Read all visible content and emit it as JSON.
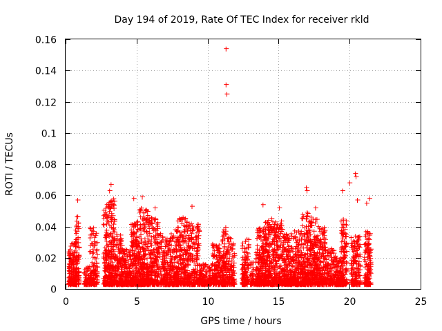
{
  "chart_data": {
    "type": "scatter",
    "title": "Day 194 of 2019, Rate Of TEC Index for receiver rkld",
    "xlabel": "GPS time / hours",
    "ylabel": "ROTI / TECUs",
    "xlim": [
      0,
      25
    ],
    "ylim": [
      0,
      0.16
    ],
    "grid": true,
    "marker": "plus",
    "series_color": "#ff0000",
    "x_ticks": [
      {
        "value": 0,
        "label": "0"
      },
      {
        "value": 5,
        "label": "5"
      },
      {
        "value": 10,
        "label": "10"
      },
      {
        "value": 15,
        "label": "15"
      },
      {
        "value": 20,
        "label": "20"
      },
      {
        "value": 25,
        "label": "25"
      }
    ],
    "y_ticks": [
      {
        "value": 0,
        "label": "0"
      },
      {
        "value": 0.02,
        "label": "0.02"
      },
      {
        "value": 0.04,
        "label": "0.04"
      },
      {
        "value": 0.06,
        "label": "0.06"
      },
      {
        "value": 0.08,
        "label": "0.08"
      },
      {
        "value": 0.1,
        "label": "0.1"
      },
      {
        "value": 0.12,
        "label": "0.12"
      },
      {
        "value": 0.14,
        "label": "0.14"
      },
      {
        "value": 0.16,
        "label": "0.16"
      }
    ],
    "peak_points": [
      {
        "x": 11.3,
        "y": 0.154
      },
      {
        "x": 11.3,
        "y": 0.131
      },
      {
        "x": 11.35,
        "y": 0.125
      },
      {
        "x": 20.4,
        "y": 0.074
      },
      {
        "x": 20.45,
        "y": 0.072
      },
      {
        "x": 20.0,
        "y": 0.068
      },
      {
        "x": 3.2,
        "y": 0.067
      },
      {
        "x": 3.1,
        "y": 0.063
      },
      {
        "x": 16.95,
        "y": 0.065
      },
      {
        "x": 17.0,
        "y": 0.063
      },
      {
        "x": 19.5,
        "y": 0.063
      },
      {
        "x": 5.4,
        "y": 0.059
      },
      {
        "x": 4.8,
        "y": 0.058
      },
      {
        "x": 0.85,
        "y": 0.057
      },
      {
        "x": 21.4,
        "y": 0.058
      },
      {
        "x": 20.55,
        "y": 0.057
      },
      {
        "x": 2.9,
        "y": 0.054
      },
      {
        "x": 13.9,
        "y": 0.054
      },
      {
        "x": 8.9,
        "y": 0.053
      },
      {
        "x": 15.05,
        "y": 0.052
      },
      {
        "x": 17.6,
        "y": 0.052
      },
      {
        "x": 6.3,
        "y": 0.052
      },
      {
        "x": 21.2,
        "y": 0.055
      }
    ],
    "clusters": [
      {
        "x": [
          0.2,
          0.75
        ],
        "ymax": 0.03,
        "n": 170
      },
      {
        "x": [
          0.7,
          0.95
        ],
        "ymax": 0.048,
        "n": 70
      },
      {
        "x": [
          1.3,
          1.75
        ],
        "ymax": 0.016,
        "n": 70
      },
      {
        "x": [
          1.7,
          2.25
        ],
        "ymax": 0.04,
        "n": 120
      },
      {
        "x": [
          2.65,
          3.05
        ],
        "ymax": 0.054,
        "n": 140
      },
      {
        "x": [
          3.05,
          3.45
        ],
        "ymax": 0.058,
        "n": 160
      },
      {
        "x": [
          3.45,
          4.0
        ],
        "ymax": 0.036,
        "n": 160
      },
      {
        "x": [
          4.0,
          4.6
        ],
        "ymax": 0.026,
        "n": 140
      },
      {
        "x": [
          4.6,
          5.2
        ],
        "ymax": 0.044,
        "n": 220
      },
      {
        "x": [
          5.2,
          5.8
        ],
        "ymax": 0.052,
        "n": 220
      },
      {
        "x": [
          5.8,
          6.5
        ],
        "ymax": 0.046,
        "n": 200
      },
      {
        "x": [
          6.5,
          7.3
        ],
        "ymax": 0.036,
        "n": 170
      },
      {
        "x": [
          7.3,
          7.9
        ],
        "ymax": 0.038,
        "n": 160
      },
      {
        "x": [
          7.9,
          8.6
        ],
        "ymax": 0.046,
        "n": 200
      },
      {
        "x": [
          8.6,
          9.4
        ],
        "ymax": 0.042,
        "n": 190
      },
      {
        "x": [
          9.4,
          10.3
        ],
        "ymax": 0.016,
        "n": 140
      },
      {
        "x": [
          10.3,
          11.0
        ],
        "ymax": 0.03,
        "n": 160
      },
      {
        "x": [
          11.0,
          11.3
        ],
        "ymax": 0.04,
        "n": 100
      },
      {
        "x": [
          11.3,
          11.9
        ],
        "ymax": 0.033,
        "n": 120
      },
      {
        "x": [
          12.4,
          12.9
        ],
        "ymax": 0.032,
        "n": 120
      },
      {
        "x": [
          13.0,
          13.4
        ],
        "ymax": 0.018,
        "n": 50
      },
      {
        "x": [
          13.4,
          14.0
        ],
        "ymax": 0.04,
        "n": 200
      },
      {
        "x": [
          14.0,
          14.6
        ],
        "ymax": 0.046,
        "n": 200
      },
      {
        "x": [
          14.6,
          15.3
        ],
        "ymax": 0.044,
        "n": 200
      },
      {
        "x": [
          15.3,
          16.0
        ],
        "ymax": 0.036,
        "n": 180
      },
      {
        "x": [
          16.0,
          16.6
        ],
        "ymax": 0.038,
        "n": 180
      },
      {
        "x": [
          16.6,
          17.1
        ],
        "ymax": 0.05,
        "n": 180
      },
      {
        "x": [
          17.1,
          17.7
        ],
        "ymax": 0.046,
        "n": 200
      },
      {
        "x": [
          17.7,
          18.3
        ],
        "ymax": 0.04,
        "n": 170
      },
      {
        "x": [
          18.3,
          19.0
        ],
        "ymax": 0.026,
        "n": 120
      },
      {
        "x": [
          19.0,
          19.4
        ],
        "ymax": 0.02,
        "n": 100
      },
      {
        "x": [
          19.4,
          19.8
        ],
        "ymax": 0.046,
        "n": 140
      },
      {
        "x": [
          20.1,
          20.75
        ],
        "ymax": 0.034,
        "n": 150
      },
      {
        "x": [
          21.05,
          21.5
        ],
        "ymax": 0.038,
        "n": 130
      }
    ]
  }
}
